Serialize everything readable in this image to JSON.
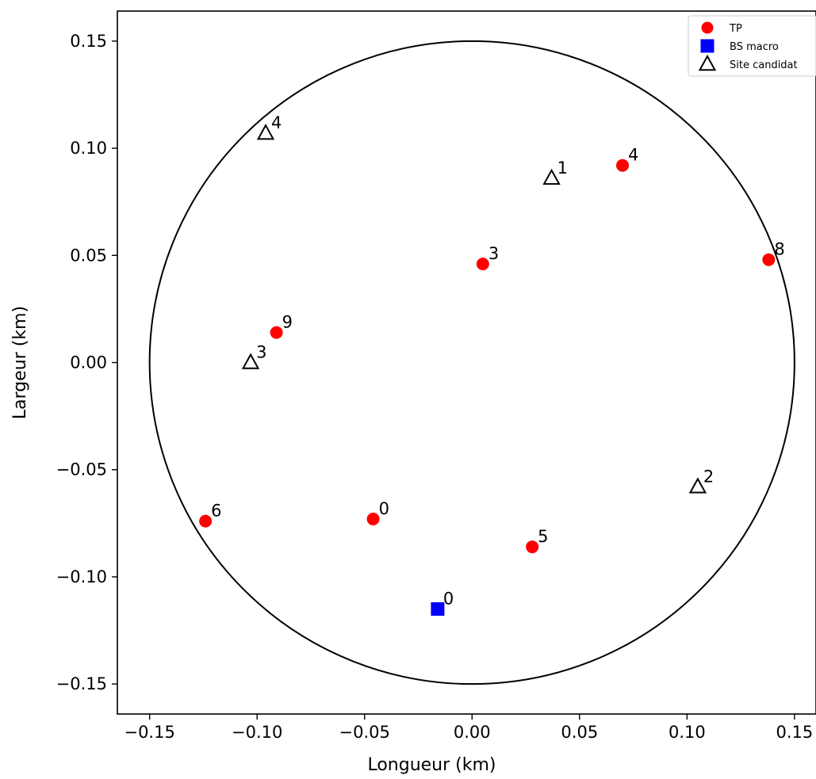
{
  "chart_data": {
    "type": "scatter",
    "xlabel": "Longueur (km)",
    "ylabel": "Largeur (km)",
    "xlim": [
      -0.165,
      0.16
    ],
    "ylim": [
      -0.164,
      0.164
    ],
    "x_ticks": [
      "−0.15",
      "−0.10",
      "−0.05",
      "0.00",
      "0.05",
      "0.10",
      "0.15"
    ],
    "y_ticks": [
      "−0.15",
      "−0.10",
      "−0.05",
      "0.00",
      "0.05",
      "0.10",
      "0.15"
    ],
    "x_tick_values": [
      -0.15,
      -0.1,
      -0.05,
      0.0,
      0.05,
      0.1,
      0.15
    ],
    "y_tick_values": [
      -0.15,
      -0.1,
      -0.05,
      0.0,
      0.05,
      0.1,
      0.15
    ],
    "circle": {
      "cx": 0.0,
      "cy": 0.0,
      "r": 0.15,
      "color": "#000000"
    },
    "grid": false,
    "legend_position": "top-right",
    "series": [
      {
        "name": "TP",
        "marker": "circle",
        "color": "#ff0000",
        "points": [
          {
            "x": -0.046,
            "y": -0.073,
            "label": "0"
          },
          {
            "x": 0.005,
            "y": 0.046,
            "label": "3"
          },
          {
            "x": 0.07,
            "y": 0.092,
            "label": "4"
          },
          {
            "x": 0.028,
            "y": -0.086,
            "label": "5"
          },
          {
            "x": -0.124,
            "y": -0.074,
            "label": "6"
          },
          {
            "x": 0.138,
            "y": 0.048,
            "label": "8"
          },
          {
            "x": -0.091,
            "y": 0.014,
            "label": "9"
          }
        ]
      },
      {
        "name": "BS macro",
        "marker": "square",
        "color": "#0000ff",
        "points": [
          {
            "x": -0.016,
            "y": -0.115,
            "label": "0"
          }
        ]
      },
      {
        "name": "Site candidat",
        "marker": "triangle-open",
        "color": "#000000",
        "points": [
          {
            "x": 0.037,
            "y": 0.086,
            "label": "1"
          },
          {
            "x": 0.105,
            "y": -0.058,
            "label": "2"
          },
          {
            "x": -0.103,
            "y": 0.0,
            "label": "3"
          },
          {
            "x": -0.096,
            "y": 0.107,
            "label": "4"
          }
        ]
      }
    ]
  }
}
